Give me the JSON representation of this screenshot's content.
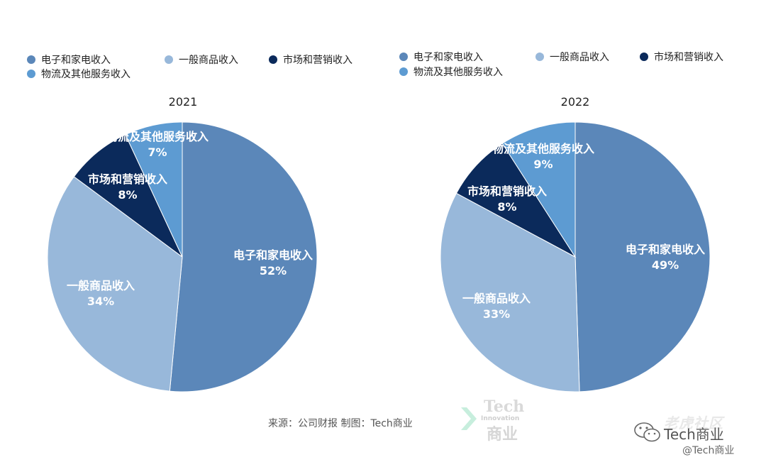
{
  "colors": {
    "electronics": "#5b87b9",
    "general": "#98b8da",
    "marketing": "#0b2a5b",
    "logistics": "#5d9bd2"
  },
  "legend": [
    {
      "label": "电子和家电收入",
      "color": "#5b87b9"
    },
    {
      "label": "一般商品收入",
      "color": "#98b8da"
    },
    {
      "label": "市场和营销收入",
      "color": "#0b2a5b"
    },
    {
      "label": "物流及其他服务收入",
      "color": "#5d9bd2"
    }
  ],
  "chart_data": [
    {
      "type": "pie",
      "title": "2021",
      "slices": [
        {
          "label": "电子和家电收入",
          "value": 52,
          "display": "52%",
          "color": "#5b87b9"
        },
        {
          "label": "一般商品收入",
          "value": 34,
          "display": "34%",
          "color": "#98b8da"
        },
        {
          "label": "市场和营销收入",
          "value": 8,
          "display": "8%",
          "color": "#0b2a5b"
        },
        {
          "label": "物流及其他服务收入",
          "value": 7,
          "display": "7%",
          "color": "#5d9bd2"
        }
      ]
    },
    {
      "type": "pie",
      "title": "2022",
      "slices": [
        {
          "label": "电子和家电收入",
          "value": 49,
          "display": "49%",
          "color": "#5b87b9"
        },
        {
          "label": "一般商品收入",
          "value": 33,
          "display": "33%",
          "color": "#98b8da"
        },
        {
          "label": "市场和营销收入",
          "value": 8,
          "display": "8%",
          "color": "#0b2a5b"
        },
        {
          "label": "物流及其他服务收入",
          "value": 9,
          "display": "9%",
          "color": "#5d9bd2"
        }
      ]
    }
  ],
  "source": "来源：公司财报  制图：Tech商业",
  "watermark": {
    "logo_tech": "Tech",
    "logo_innovation": "Innovation",
    "logo_cn": "商业",
    "site": "老虎社区",
    "account": "Tech商业",
    "handle": "@Tech商业"
  }
}
